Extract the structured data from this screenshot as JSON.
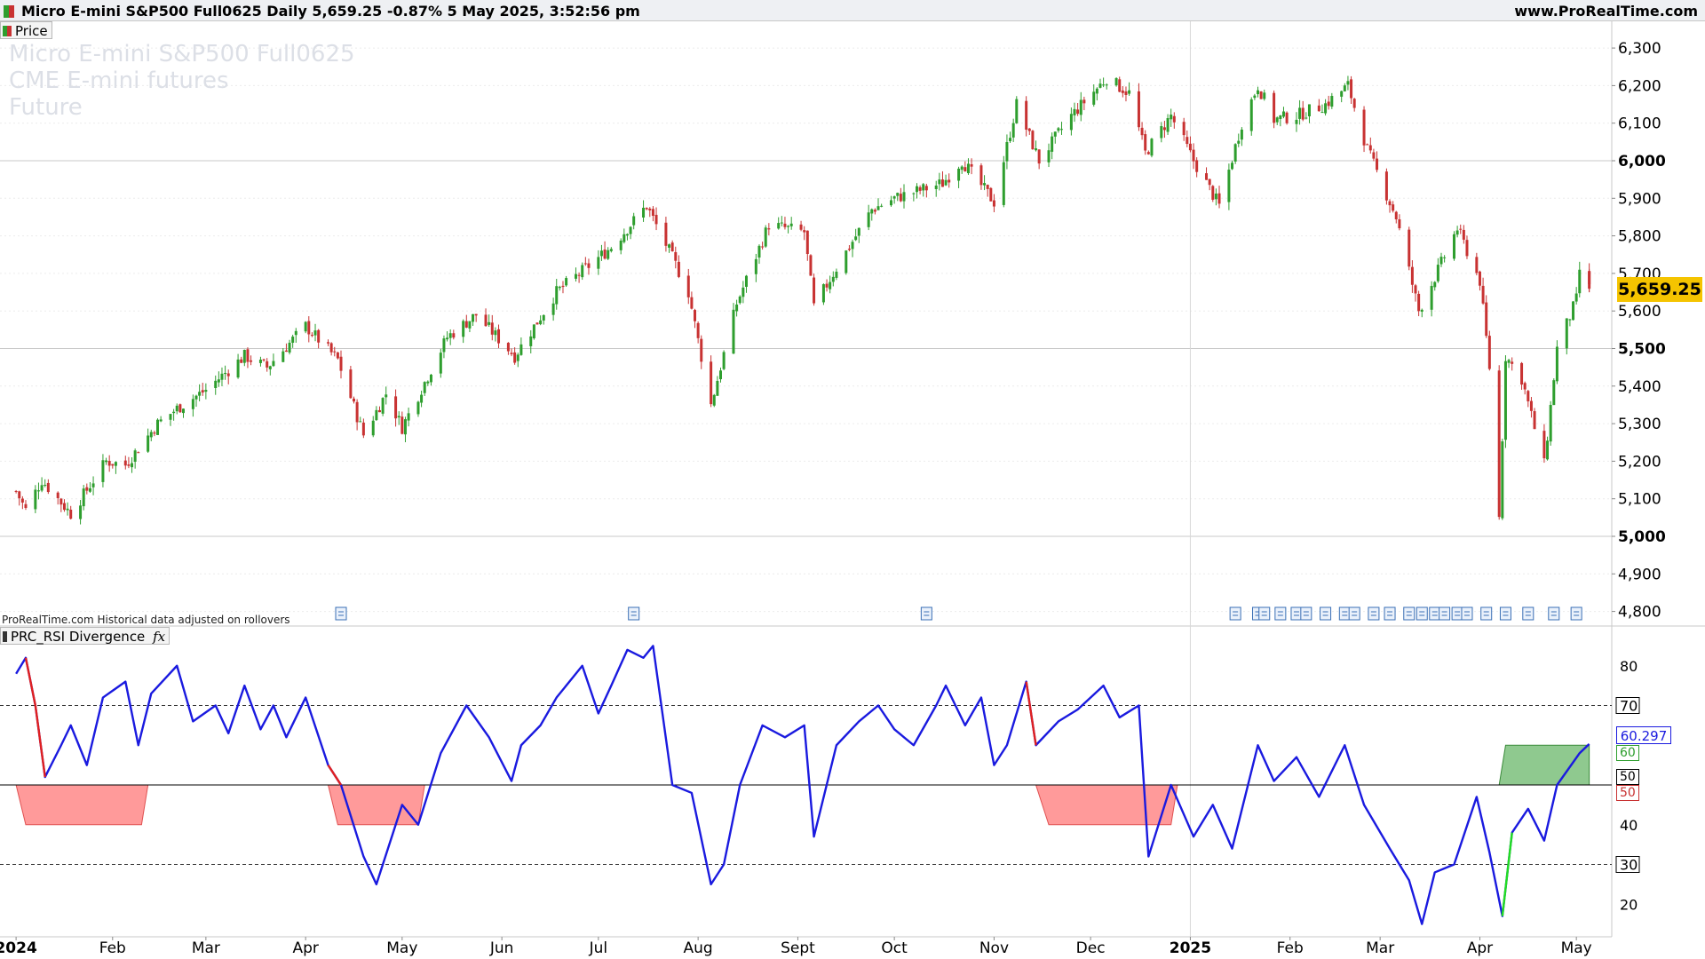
{
  "window": {
    "title": "Micro E-mini S&P500 Full0625 Daily 5,659.25 -0.87% 5 May 2025, 3:52:56 pm",
    "brand": "www.ProRealTime.com"
  },
  "price_panel": {
    "legend_label": "Price",
    "watermark": [
      "Micro E-mini S&P500 Full0625",
      "CME E-mini futures",
      "Future"
    ],
    "disclaimer": "ProRealTime.com Historical data adjusted on rollovers",
    "last_price_label": "5,659.25",
    "y_ticks": [
      "6,300",
      "6,200",
      "6,100",
      "6,000",
      "5,900",
      "5,800",
      "5,700",
      "5,600",
      "5,500",
      "5,400",
      "5,300",
      "5,200",
      "5,100",
      "5,000",
      "4,900",
      "4,800"
    ]
  },
  "indicator_panel": {
    "legend_label": "PRC_RSI Divergence",
    "fx_icon": "fx",
    "value_label": "60.297",
    "level_green": "60",
    "level_black": "50",
    "level_red": "50",
    "y_ticks": [
      "80",
      "70",
      "50",
      "40",
      "30",
      "20"
    ]
  },
  "x_axis": {
    "labels": [
      "2024",
      "Feb",
      "Mar",
      "Apr",
      "May",
      "Jun",
      "Jul",
      "Aug",
      "Sept",
      "Oct",
      "Nov",
      "Dec",
      "2025",
      "Feb",
      "Mar",
      "Apr",
      "May"
    ]
  },
  "colors": {
    "up_candle": "#2e9e2e",
    "down_candle": "#c83232",
    "rsi_line": "#1a1adf",
    "bear_zone": "#ff9a9a",
    "bull_zone": "#8fc98f",
    "last_price_bg": "#f5c400"
  },
  "chart_data": [
    {
      "type": "candlestick",
      "title": "Micro E-mini S&P500 Full0625 Daily",
      "ylim": [
        4780,
        6340
      ],
      "close_path": [
        [
          "2024-01-02",
          5120
        ],
        [
          "2024-01-05",
          5070
        ],
        [
          "2024-01-10",
          5150
        ],
        [
          "2024-01-19",
          5060
        ],
        [
          "2024-01-30",
          5200
        ],
        [
          "2024-02-05",
          5190
        ],
        [
          "2024-02-15",
          5300
        ],
        [
          "2024-02-21",
          5340
        ],
        [
          "2024-03-01",
          5390
        ],
        [
          "2024-03-13",
          5480
        ],
        [
          "2024-03-20",
          5450
        ],
        [
          "2024-04-01",
          5560
        ],
        [
          "2024-04-11",
          5470
        ],
        [
          "2024-04-19",
          5270
        ],
        [
          "2024-04-26",
          5380
        ],
        [
          "2024-05-01",
          5290
        ],
        [
          "2024-05-15",
          5530
        ],
        [
          "2024-05-24",
          5590
        ],
        [
          "2024-06-05",
          5480
        ],
        [
          "2024-06-18",
          5650
        ],
        [
          "2024-06-28",
          5720
        ],
        [
          "2024-07-05",
          5770
        ],
        [
          "2024-07-16",
          5880
        ],
        [
          "2024-07-23",
          5760
        ],
        [
          "2024-07-29",
          5650
        ],
        [
          "2024-08-05",
          5350
        ],
        [
          "2024-08-13",
          5620
        ],
        [
          "2024-08-23",
          5830
        ],
        [
          "2024-09-03",
          5810
        ],
        [
          "2024-09-06",
          5610
        ],
        [
          "2024-09-12",
          5700
        ],
        [
          "2024-09-24",
          5870
        ],
        [
          "2024-10-01",
          5900
        ],
        [
          "2024-10-16",
          5940
        ],
        [
          "2024-10-22",
          6000
        ],
        [
          "2024-11-01",
          5890
        ],
        [
          "2024-11-08",
          6150
        ],
        [
          "2024-11-15",
          6000
        ],
        [
          "2024-11-25",
          6120
        ],
        [
          "2024-12-06",
          6220
        ],
        [
          "2024-12-13",
          6180
        ],
        [
          "2024-12-18",
          6020
        ],
        [
          "2024-12-26",
          6120
        ],
        [
          "2025-01-02",
          6000
        ],
        [
          "2025-01-10",
          5880
        ],
        [
          "2025-01-17",
          6100
        ],
        [
          "2025-01-22",
          6200
        ],
        [
          "2025-01-27",
          6110
        ],
        [
          "2025-02-03",
          6120
        ],
        [
          "2025-02-12",
          6150
        ],
        [
          "2025-02-19",
          6200
        ],
        [
          "2025-02-25",
          6030
        ],
        [
          "2025-03-06",
          5850
        ],
        [
          "2025-03-13",
          5600
        ],
        [
          "2025-03-18",
          5690
        ],
        [
          "2025-03-25",
          5820
        ],
        [
          "2025-04-01",
          5680
        ],
        [
          "2025-04-04",
          5450
        ],
        [
          "2025-04-07",
          5050
        ],
        [
          "2025-04-09",
          5480
        ],
        [
          "2025-04-14",
          5420
        ],
        [
          "2025-04-21",
          5190
        ],
        [
          "2025-04-25",
          5500
        ],
        [
          "2025-05-01",
          5630
        ],
        [
          "2025-05-02",
          5710
        ],
        [
          "2025-05-05",
          5659.25
        ]
      ]
    },
    {
      "type": "line",
      "title": "PRC_RSI Divergence",
      "ylim": [
        13,
        83
      ],
      "reference_lines": [
        70,
        50,
        30
      ],
      "series": [
        {
          "name": "PRC_RSI Divergence",
          "values": [
            [
              "2024-01-02",
              78
            ],
            [
              "2024-01-05",
              82
            ],
            [
              "2024-01-08",
              70
            ],
            [
              "2024-01-11",
              52
            ],
            [
              "2024-01-16",
              60
            ],
            [
              "2024-01-19",
              65
            ],
            [
              "2024-01-24",
              55
            ],
            [
              "2024-01-29",
              72
            ],
            [
              "2024-02-05",
              76
            ],
            [
              "2024-02-09",
              60
            ],
            [
              "2024-02-13",
              73
            ],
            [
              "2024-02-21",
              80
            ],
            [
              "2024-02-26",
              66
            ],
            [
              "2024-03-04",
              70
            ],
            [
              "2024-03-08",
              63
            ],
            [
              "2024-03-13",
              75
            ],
            [
              "2024-03-18",
              64
            ],
            [
              "2024-03-22",
              70
            ],
            [
              "2024-03-26",
              62
            ],
            [
              "2024-04-01",
              72
            ],
            [
              "2024-04-08",
              55
            ],
            [
              "2024-04-12",
              50
            ],
            [
              "2024-04-19",
              32
            ],
            [
              "2024-04-23",
              25
            ],
            [
              "2024-04-29",
              40
            ],
            [
              "2024-05-01",
              45
            ],
            [
              "2024-05-06",
              40
            ],
            [
              "2024-05-13",
              58
            ],
            [
              "2024-05-21",
              70
            ],
            [
              "2024-05-28",
              62
            ],
            [
              "2024-06-04",
              51
            ],
            [
              "2024-06-07",
              60
            ],
            [
              "2024-06-13",
              65
            ],
            [
              "2024-06-18",
              72
            ],
            [
              "2024-06-26",
              80
            ],
            [
              "2024-07-01",
              68
            ],
            [
              "2024-07-05",
              75
            ],
            [
              "2024-07-10",
              84
            ],
            [
              "2024-07-15",
              82
            ],
            [
              "2024-07-18",
              85
            ],
            [
              "2024-07-24",
              50
            ],
            [
              "2024-07-30",
              48
            ],
            [
              "2024-08-05",
              25
            ],
            [
              "2024-08-09",
              30
            ],
            [
              "2024-08-14",
              50
            ],
            [
              "2024-08-21",
              65
            ],
            [
              "2024-08-28",
              62
            ],
            [
              "2024-09-03",
              65
            ],
            [
              "2024-09-06",
              37
            ],
            [
              "2024-09-13",
              60
            ],
            [
              "2024-09-20",
              66
            ],
            [
              "2024-09-26",
              70
            ],
            [
              "2024-10-01",
              64
            ],
            [
              "2024-10-07",
              60
            ],
            [
              "2024-10-14",
              70
            ],
            [
              "2024-10-17",
              75
            ],
            [
              "2024-10-23",
              65
            ],
            [
              "2024-10-28",
              72
            ],
            [
              "2024-11-01",
              55
            ],
            [
              "2024-11-05",
              60
            ],
            [
              "2024-11-11",
              76
            ],
            [
              "2024-11-14",
              60
            ],
            [
              "2024-11-21",
              66
            ],
            [
              "2024-11-27",
              69
            ],
            [
              "2024-12-05",
              75
            ],
            [
              "2024-12-10",
              67
            ],
            [
              "2024-12-16",
              70
            ],
            [
              "2024-12-19",
              32
            ],
            [
              "2024-12-26",
              50
            ],
            [
              "2025-01-02",
              37
            ],
            [
              "2025-01-08",
              45
            ],
            [
              "2025-01-14",
              34
            ],
            [
              "2025-01-22",
              60
            ],
            [
              "2025-01-27",
              51
            ],
            [
              "2025-02-03",
              57
            ],
            [
              "2025-02-10",
              47
            ],
            [
              "2025-02-18",
              60
            ],
            [
              "2025-02-24",
              45
            ],
            [
              "2025-03-04",
              34
            ],
            [
              "2025-03-10",
              26
            ],
            [
              "2025-03-14",
              15
            ],
            [
              "2025-03-18",
              28
            ],
            [
              "2025-03-24",
              30
            ],
            [
              "2025-03-31",
              47
            ],
            [
              "2025-04-04",
              33
            ],
            [
              "2025-04-08",
              17
            ],
            [
              "2025-04-11",
              38
            ],
            [
              "2025-04-16",
              44
            ],
            [
              "2025-04-21",
              36
            ],
            [
              "2025-04-25",
              50
            ],
            [
              "2025-05-02",
              58
            ],
            [
              "2025-05-05",
              60.297
            ]
          ]
        }
      ]
    }
  ]
}
